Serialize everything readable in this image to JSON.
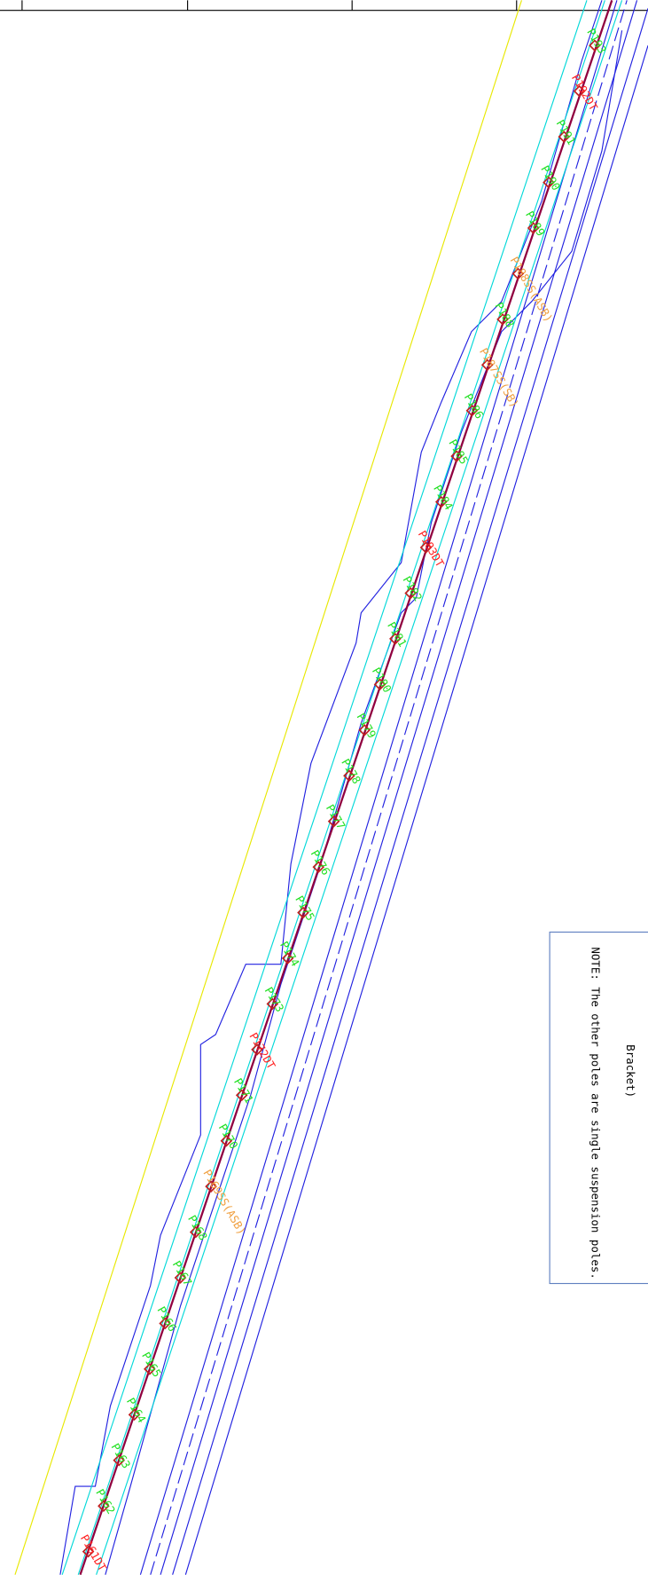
{
  "poles": [
    {
      "label": "P161DT",
      "color": "#ff2020"
    },
    {
      "label": "P162",
      "color": "#20e020"
    },
    {
      "label": "P163",
      "color": "#20e020"
    },
    {
      "label": "P164",
      "color": "#20e020"
    },
    {
      "label": "P165",
      "color": "#20e020"
    },
    {
      "label": "P166",
      "color": "#20e020"
    },
    {
      "label": "P167",
      "color": "#20e020"
    },
    {
      "label": "P168",
      "color": "#20e020"
    },
    {
      "label": "P169SS(ASB)",
      "color": "#f0a040"
    },
    {
      "label": "P170",
      "color": "#20e020"
    },
    {
      "label": "P171",
      "color": "#20e020"
    },
    {
      "label": "P172DT",
      "color": "#ff2020"
    },
    {
      "label": "P173",
      "color": "#20e020"
    },
    {
      "label": "P174",
      "color": "#20e020"
    },
    {
      "label": "P175",
      "color": "#20e020"
    },
    {
      "label": "P176",
      "color": "#20e020"
    },
    {
      "label": "P177",
      "color": "#20e020"
    },
    {
      "label": "P178",
      "color": "#20e020"
    },
    {
      "label": "P179",
      "color": "#20e020"
    },
    {
      "label": "P180",
      "color": "#20e020"
    },
    {
      "label": "P181",
      "color": "#20e020"
    },
    {
      "label": "P182",
      "color": "#20e020"
    },
    {
      "label": "P183DT",
      "color": "#ff2020"
    },
    {
      "label": "P184",
      "color": "#20e020"
    },
    {
      "label": "P185",
      "color": "#20e020"
    },
    {
      "label": "P186",
      "color": "#20e020"
    },
    {
      "label": "P187SS(SB)",
      "color": "#f0a040"
    },
    {
      "label": "P188",
      "color": "#20e020"
    },
    {
      "label": "P188SS(ASB)",
      "color": "#f0a040"
    },
    {
      "label": "P189",
      "color": "#20e020"
    },
    {
      "label": "P190",
      "color": "#20e020"
    },
    {
      "label": "P191",
      "color": "#20e020"
    },
    {
      "label": "P192DT",
      "color": "#ff2020"
    },
    {
      "label": "P193",
      "color": "#20e020"
    }
  ],
  "note": {
    "line1": "Bracket)",
    "line2": "NOTE: The other poles are single suspension poles."
  }
}
